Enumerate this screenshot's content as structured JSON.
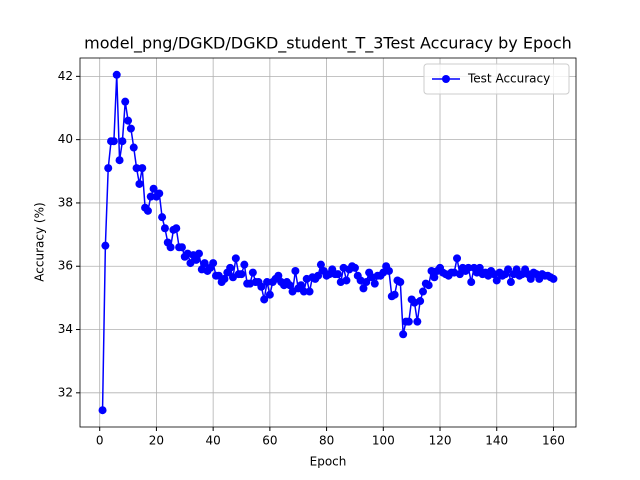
{
  "chart_data": {
    "type": "line",
    "title": "model_png/DGKD/DGKD_student_T_3Test Accuracy by Epoch",
    "x_label": "Epoch",
    "y_label": "Accuracy (%)",
    "x": [
      1,
      2,
      3,
      4,
      5,
      6,
      7,
      8,
      9,
      10,
      11,
      12,
      13,
      14,
      15,
      16,
      17,
      18,
      19,
      20,
      21,
      22,
      23,
      24,
      25,
      26,
      27,
      28,
      29,
      30,
      31,
      32,
      33,
      34,
      35,
      36,
      37,
      38,
      39,
      40,
      41,
      42,
      43,
      44,
      45,
      46,
      47,
      48,
      49,
      50,
      51,
      52,
      53,
      54,
      55,
      56,
      57,
      58,
      59,
      60,
      61,
      62,
      63,
      64,
      65,
      66,
      67,
      68,
      69,
      70,
      71,
      72,
      73,
      74,
      75,
      76,
      77,
      78,
      79,
      80,
      81,
      82,
      83,
      84,
      85,
      86,
      87,
      88,
      89,
      90,
      91,
      92,
      93,
      94,
      95,
      96,
      97,
      98,
      99,
      100,
      101,
      102,
      103,
      104,
      105,
      106,
      107,
      108,
      109,
      110,
      111,
      112,
      113,
      114,
      115,
      116,
      117,
      118,
      119,
      120,
      121,
      122,
      123,
      124,
      125,
      126,
      127,
      128,
      129,
      130,
      131,
      132,
      133,
      134,
      135,
      136,
      137,
      138,
      139,
      140,
      141,
      142,
      143,
      144,
      145,
      146,
      147,
      148,
      149,
      150,
      151,
      152,
      153,
      154,
      155,
      156,
      157,
      158,
      159,
      160
    ],
    "series": [
      {
        "name": "Test Accuracy",
        "color": "#0000ff",
        "marker": "o",
        "values": [
          31.45,
          36.65,
          39.1,
          39.95,
          39.95,
          42.05,
          39.35,
          39.95,
          41.2,
          40.6,
          40.35,
          39.75,
          39.1,
          38.6,
          39.1,
          37.85,
          37.75,
          38.2,
          38.45,
          38.2,
          38.3,
          37.55,
          37.2,
          36.75,
          36.6,
          37.15,
          37.2,
          36.6,
          36.6,
          36.3,
          36.4,
          36.1,
          36.35,
          36.2,
          36.4,
          35.9,
          36.1,
          35.85,
          35.95,
          36.1,
          35.7,
          35.7,
          35.5,
          35.6,
          35.8,
          35.95,
          35.65,
          36.25,
          35.75,
          35.75,
          36.05,
          35.45,
          35.45,
          35.8,
          35.5,
          35.5,
          35.35,
          34.95,
          35.5,
          35.1,
          35.5,
          35.6,
          35.7,
          35.5,
          35.4,
          35.5,
          35.4,
          35.2,
          35.85,
          35.3,
          35.4,
          35.2,
          35.6,
          35.2,
          35.65,
          35.6,
          35.7,
          36.05,
          35.85,
          35.7,
          35.75,
          35.9,
          35.75,
          35.75,
          35.5,
          35.95,
          35.55,
          35.9,
          36.0,
          35.95,
          35.7,
          35.55,
          35.3,
          35.5,
          35.8,
          35.65,
          35.45,
          35.7,
          35.7,
          35.8,
          36.0,
          35.85,
          35.05,
          35.1,
          35.55,
          35.5,
          33.85,
          34.25,
          34.25,
          34.95,
          34.85,
          34.25,
          34.9,
          35.2,
          35.45,
          35.4,
          35.85,
          35.65,
          35.85,
          35.95,
          35.8,
          35.75,
          35.7,
          35.8,
          35.8,
          36.25,
          35.75,
          35.95,
          35.85,
          35.95,
          35.5,
          35.95,
          35.8,
          35.95,
          35.75,
          35.8,
          35.7,
          35.85,
          35.75,
          35.55,
          35.8,
          35.7,
          35.75,
          35.9,
          35.5,
          35.75,
          35.9,
          35.7,
          35.75,
          35.9,
          35.75,
          35.6,
          35.8,
          35.75,
          35.6,
          35.75,
          35.7,
          35.7,
          35.65,
          35.6
        ]
      }
    ],
    "xlim": [
      -6.95,
      167.95
    ],
    "ylim": [
      30.92,
      42.58
    ],
    "xticks": [
      0,
      20,
      40,
      60,
      80,
      100,
      120,
      140,
      160
    ],
    "yticks": [
      32,
      34,
      36,
      38,
      40,
      42
    ],
    "grid": true,
    "legend": "upper right"
  }
}
